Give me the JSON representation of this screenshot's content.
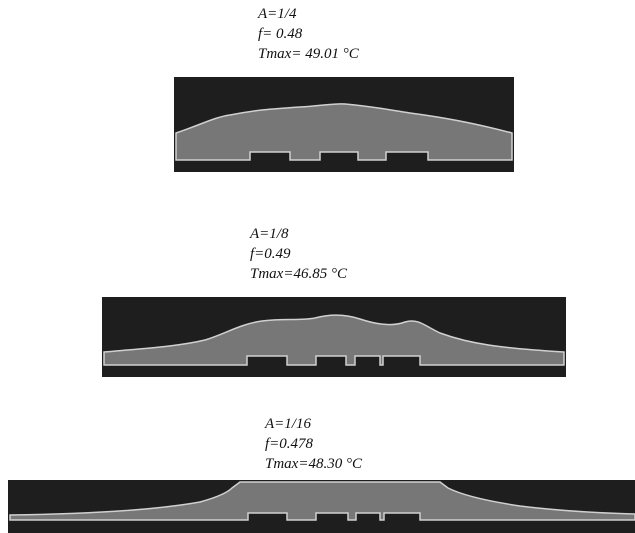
{
  "panels": [
    {
      "a": "A=1/4",
      "f": "f= 0.48",
      "tmax": "Tmax= 49.01  °C"
    },
    {
      "a": "A=1/8",
      "f": "f=0.49",
      "tmax": "Tmax=46.85 °C"
    },
    {
      "a": "A=1/16",
      "f": "f=0.478",
      "tmax": "Tmax=48.30  °C"
    }
  ]
}
